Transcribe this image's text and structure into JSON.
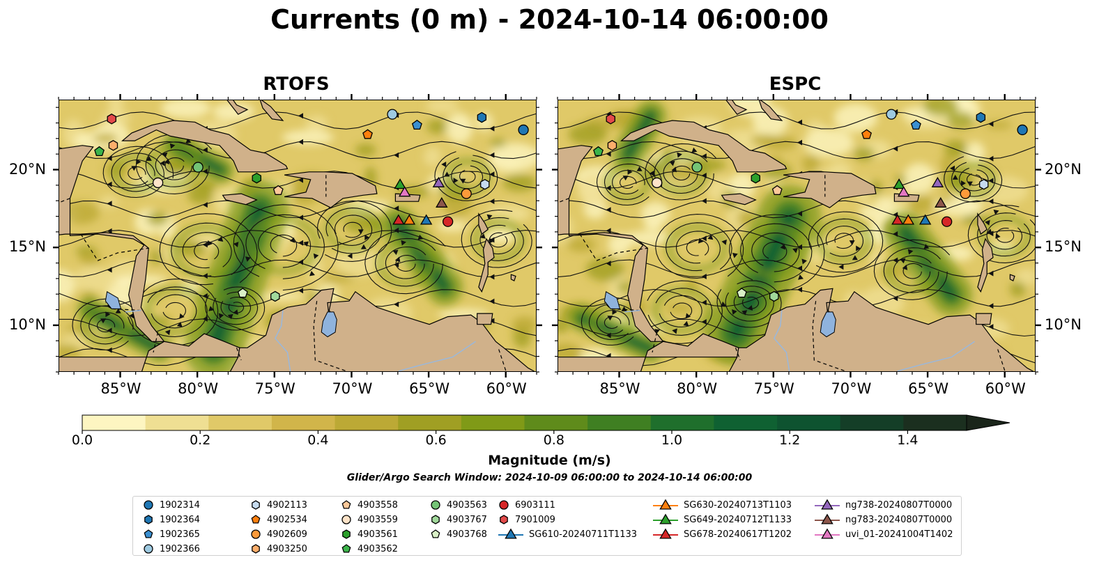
{
  "title": "Currents (0 m) - 2024-10-14 06:00:00",
  "panels": [
    {
      "id": "rtofs",
      "title": "RTOFS"
    },
    {
      "id": "espc",
      "title": "ESPC"
    }
  ],
  "map": {
    "lon_range": [
      -89.0,
      -58.0
    ],
    "lat_range": [
      7.0,
      24.5
    ],
    "lon_ticks": [
      {
        "value": -85,
        "label": "85°W"
      },
      {
        "value": -80,
        "label": "80°W"
      },
      {
        "value": -75,
        "label": "75°W"
      },
      {
        "value": -70,
        "label": "70°W"
      },
      {
        "value": -65,
        "label": "65°W"
      },
      {
        "value": -60,
        "label": "60°W"
      }
    ],
    "lat_ticks": [
      {
        "value": 20,
        "label": "20°N"
      },
      {
        "value": 15,
        "label": "15°N"
      },
      {
        "value": 10,
        "label": "10°N"
      }
    ],
    "land_color": "#d0b18a",
    "lake_color": "#8fb3dd"
  },
  "colorbar": {
    "label": "Magnitude (m/s)",
    "range": [
      0.0,
      1.5
    ],
    "extend": "max",
    "ticks": [
      {
        "value": 0.0,
        "label": "0.0"
      },
      {
        "value": 0.2,
        "label": "0.2"
      },
      {
        "value": 0.4,
        "label": "0.4"
      },
      {
        "value": 0.6,
        "label": "0.6"
      },
      {
        "value": 0.8,
        "label": "0.8"
      },
      {
        "value": 1.0,
        "label": "1.0"
      },
      {
        "value": 1.2,
        "label": "1.2"
      },
      {
        "value": 1.4,
        "label": "1.4"
      }
    ],
    "colors": [
      "#fdf5c1",
      "#efdf93",
      "#e0c968",
      "#d1b54a",
      "#bca935",
      "#a09f23",
      "#809a17",
      "#5f8b1b",
      "#3f7f22",
      "#1f6f2c",
      "#0f6132",
      "#0e5330",
      "#143e27",
      "#1b2f1f",
      "#1a251a"
    ]
  },
  "caption": "Glider/Argo Search Window: 2024-10-09 06:00:00 to 2024-10-14 06:00:00",
  "legend": [
    {
      "label": "1902314",
      "marker": "circle",
      "color": "#1f77b4"
    },
    {
      "label": "1902364",
      "marker": "hexagon",
      "color": "#1f77b4"
    },
    {
      "label": "1902365",
      "marker": "pentagon",
      "color": "#3a8fd1"
    },
    {
      "label": "1902366",
      "marker": "circle",
      "color": "#9ecae1"
    },
    {
      "label": "4902113",
      "marker": "hexagon",
      "color": "#c6dbef"
    },
    {
      "label": "4902534",
      "marker": "pentagon",
      "color": "#ff7f0e"
    },
    {
      "label": "4902609",
      "marker": "circle",
      "color": "#fd9a3a"
    },
    {
      "label": "4903250",
      "marker": "hexagon",
      "color": "#fdae6b"
    },
    {
      "label": "4903558",
      "marker": "pentagon",
      "color": "#fdc99a"
    },
    {
      "label": "4903559",
      "marker": "circle",
      "color": "#fde3c8"
    },
    {
      "label": "4903561",
      "marker": "hexagon",
      "color": "#2ca02c"
    },
    {
      "label": "4903562",
      "marker": "pentagon",
      "color": "#3cb44b"
    },
    {
      "label": "4903563",
      "marker": "circle",
      "color": "#74c476"
    },
    {
      "label": "4903767",
      "marker": "hexagon",
      "color": "#a1d99b"
    },
    {
      "label": "4903768",
      "marker": "pentagon",
      "color": "#d9f0c6"
    },
    {
      "label": "6903111",
      "marker": "circle",
      "color": "#d62728"
    },
    {
      "label": "7901009",
      "marker": "hexagon",
      "color": "#e34a4a"
    },
    {
      "label": "SG610-20240711T1133",
      "marker": "triangle",
      "color": "#1f77b4"
    },
    {
      "label": "SG630-20240713T1103",
      "marker": "triangle",
      "color": "#ff7f0e"
    },
    {
      "label": "SG649-20240712T1133",
      "marker": "triangle",
      "color": "#2ca02c"
    },
    {
      "label": "SG678-20240617T1202",
      "marker": "triangle",
      "color": "#d62728"
    },
    {
      "label": "ng738-20240807T0000",
      "marker": "triangle",
      "color": "#9467bd"
    },
    {
      "label": "ng783-20240807T0000",
      "marker": "triangle",
      "color": "#8c564b"
    },
    {
      "label": "uvi_01-20241004T1402",
      "marker": "triangle",
      "color": "#e377c2"
    }
  ],
  "chart_data": {
    "type": "heatmap",
    "title": "Currents (0 m) - 2024-10-14 06:00:00",
    "subplots": [
      "RTOFS",
      "ESPC"
    ],
    "xlabel": "",
    "ylabel": "",
    "xlim": [
      -89.0,
      -58.0
    ],
    "ylim": [
      7.0,
      24.5
    ],
    "colorbar_label": "Magnitude (m/s)",
    "colorbar_range": [
      0.0,
      1.5
    ],
    "platforms": [
      {
        "id": "1902314",
        "lon": -58.9,
        "lat": 22.6
      },
      {
        "id": "1902364",
        "lon": -61.6,
        "lat": 23.4
      },
      {
        "id": "1902365",
        "lon": -65.8,
        "lat": 22.9
      },
      {
        "id": "1902366",
        "lon": -67.4,
        "lat": 23.6
      },
      {
        "id": "4902113",
        "lon": -61.4,
        "lat": 19.1
      },
      {
        "id": "4902534",
        "lon": -69.0,
        "lat": 22.3
      },
      {
        "id": "4902609",
        "lon": -62.6,
        "lat": 18.5
      },
      {
        "id": "4903250",
        "lon": -85.5,
        "lat": 21.6
      },
      {
        "id": "4903558",
        "lon": -74.8,
        "lat": 18.7
      },
      {
        "id": "4903559",
        "lon": -82.6,
        "lat": 19.2
      },
      {
        "id": "4903561",
        "lon": -76.2,
        "lat": 19.5
      },
      {
        "id": "4903562",
        "lon": -86.4,
        "lat": 21.2
      },
      {
        "id": "4903563",
        "lon": -80.0,
        "lat": 20.2
      },
      {
        "id": "4903767",
        "lon": -75.0,
        "lat": 11.9
      },
      {
        "id": "4903768",
        "lon": -77.1,
        "lat": 12.1
      },
      {
        "id": "6903111",
        "lon": -63.8,
        "lat": 16.7
      },
      {
        "id": "7901009",
        "lon": -85.6,
        "lat": 23.3
      },
      {
        "id": "SG610-20240711T1133",
        "lon": -65.2,
        "lat": 16.8
      },
      {
        "id": "SG630-20240713T1103",
        "lon": -66.3,
        "lat": 16.8
      },
      {
        "id": "SG649-20240712T1133",
        "lon": -66.9,
        "lat": 19.1
      },
      {
        "id": "SG678-20240617T1202",
        "lon": -67.0,
        "lat": 16.8
      },
      {
        "id": "ng738-20240807T0000",
        "lon": -64.4,
        "lat": 19.2
      },
      {
        "id": "ng783-20240807T0000",
        "lon": -64.2,
        "lat": 17.9
      },
      {
        "id": "uvi_01-20241004T1402",
        "lon": -66.6,
        "lat": 18.6
      }
    ]
  }
}
